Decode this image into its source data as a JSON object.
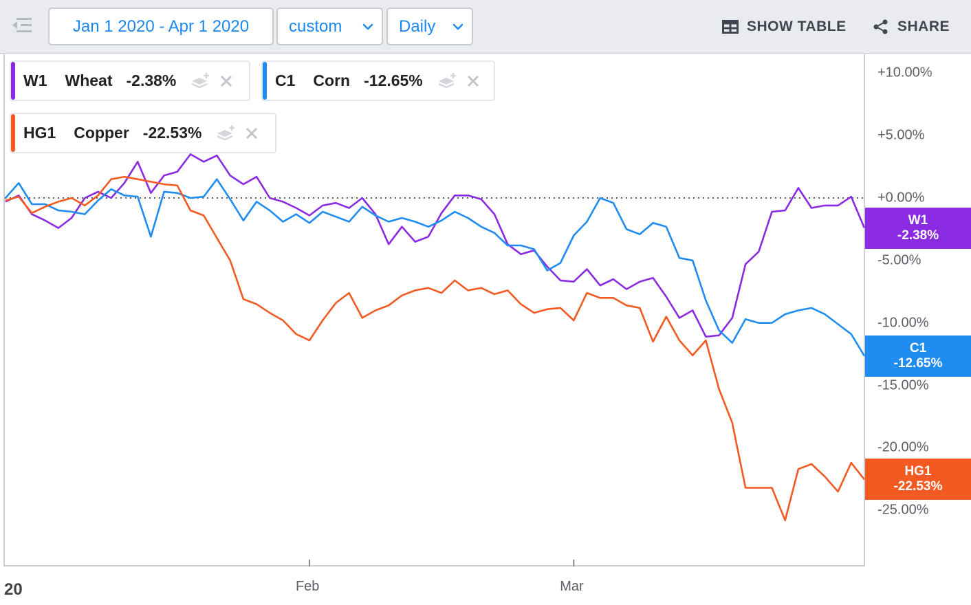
{
  "toolbar": {
    "date_range": "Jan 1 2020 - Apr 1 2020",
    "range_mode": "custom",
    "interval": "Daily",
    "show_table_label": "SHOW TABLE",
    "share_label": "SHARE"
  },
  "legend": [
    {
      "symbol": "W1",
      "name": "Wheat",
      "change": "-2.38%",
      "color": "#8a2be2"
    },
    {
      "symbol": "C1",
      "name": "Corn",
      "change": "-12.65%",
      "color": "#1e8cf0"
    },
    {
      "symbol": "HG1",
      "name": "Copper",
      "change": "-22.53%",
      "color": "#f35a22"
    }
  ],
  "badges": [
    {
      "symbol": "W1",
      "value": "-2.38%",
      "color": "#8a2be2"
    },
    {
      "symbol": "C1",
      "value": "-12.65%",
      "color": "#1e8cf0"
    },
    {
      "symbol": "HG1",
      "value": "-22.53%",
      "color": "#f35a22"
    }
  ],
  "chart_data": {
    "type": "line",
    "y_unit": "%",
    "ylim": [
      -29.5,
      11.5
    ],
    "xlim": [
      0,
      65
    ],
    "baseline": 0,
    "x_tick_labels": [
      {
        "label": "20",
        "x": 0
      },
      {
        "label": "Feb",
        "x": 23
      },
      {
        "label": "Mar",
        "x": 43
      }
    ],
    "y_tick_labels": [
      "+10.00%",
      "+5.00%",
      "+0.00%",
      "-5.00%",
      "-10.00%",
      "-15.00%",
      "-20.00%",
      "-25.00%"
    ],
    "y_tick_values": [
      10,
      5,
      0,
      -5,
      -10,
      -15,
      -20,
      -25
    ],
    "series": [
      {
        "name": "W1",
        "color": "#8a2be2",
        "x": [
          0,
          1,
          2,
          3,
          4,
          5,
          6,
          7,
          8,
          9,
          10,
          11,
          12,
          13,
          14,
          15,
          16,
          17,
          18,
          19,
          20,
          21,
          22,
          23,
          24,
          25,
          26,
          27,
          28,
          29,
          30,
          31,
          32,
          33,
          34,
          35,
          36,
          37,
          38,
          39,
          40,
          41,
          42,
          43,
          44,
          45,
          46,
          47,
          48,
          49,
          50,
          51,
          52,
          53,
          54,
          55,
          56,
          57,
          58,
          59,
          60,
          61,
          62,
          63,
          64,
          65
        ],
        "values": [
          -0.3,
          0.2,
          -1.3,
          -1.8,
          -2.4,
          -1.6,
          0.0,
          0.5,
          0.0,
          1.2,
          2.9,
          0.4,
          1.8,
          2.1,
          3.5,
          2.9,
          3.4,
          1.8,
          1.1,
          1.7,
          0.0,
          -0.3,
          -0.8,
          -1.4,
          -0.6,
          -0.4,
          -0.8,
          0.0,
          -1.3,
          -3.7,
          -2.3,
          -3.5,
          -3.1,
          -1.2,
          0.2,
          0.2,
          -0.1,
          -1.3,
          -3.7,
          -4.5,
          -4.2,
          -5.5,
          -6.6,
          -6.7,
          -5.7,
          -7.0,
          -6.5,
          -7.3,
          -6.7,
          -6.4,
          -7.9,
          -9.6,
          -9.0,
          -11.1,
          -11.0,
          -9.6,
          -5.3,
          -4.3,
          -1.1,
          -1.0,
          0.8,
          -0.8,
          -0.6,
          -0.6,
          0.1,
          -2.4
        ]
      },
      {
        "name": "C1",
        "color": "#1e8cf0",
        "x": [
          0,
          1,
          2,
          3,
          4,
          5,
          6,
          7,
          8,
          9,
          10,
          11,
          12,
          13,
          14,
          15,
          16,
          17,
          18,
          19,
          20,
          21,
          22,
          23,
          24,
          25,
          26,
          27,
          28,
          29,
          30,
          31,
          32,
          33,
          34,
          35,
          36,
          37,
          38,
          39,
          40,
          41,
          42,
          43,
          44,
          45,
          46,
          47,
          48,
          49,
          50,
          51,
          52,
          53,
          54,
          55,
          56,
          57,
          58,
          59,
          60,
          61,
          62,
          63,
          64,
          65
        ],
        "values": [
          0.0,
          1.2,
          -0.5,
          -0.5,
          -1.0,
          -1.1,
          -1.3,
          -0.2,
          0.7,
          0.2,
          0.1,
          -3.1,
          0.5,
          0.4,
          0.0,
          0.1,
          1.5,
          -0.1,
          -1.8,
          -0.3,
          -1.0,
          -1.9,
          -1.3,
          -2.0,
          -1.1,
          -1.5,
          -1.9,
          -0.7,
          -1.4,
          -1.9,
          -1.6,
          -1.9,
          -2.3,
          -1.8,
          -1.1,
          -1.6,
          -2.3,
          -2.8,
          -3.8,
          -3.8,
          -4.1,
          -5.8,
          -5.2,
          -3.0,
          -1.9,
          0.0,
          -0.4,
          -2.5,
          -2.9,
          -2.0,
          -2.3,
          -4.8,
          -5.0,
          -8.2,
          -10.6,
          -11.6,
          -9.7,
          -10.0,
          -10.0,
          -9.3,
          -9.0,
          -8.8,
          -9.3,
          -10.1,
          -10.9,
          -12.65
        ]
      },
      {
        "name": "HG1",
        "color": "#f35a22",
        "x": [
          0,
          1,
          2,
          3,
          4,
          5,
          6,
          7,
          8,
          9,
          10,
          11,
          12,
          13,
          14,
          15,
          16,
          17,
          18,
          19,
          20,
          21,
          22,
          23,
          24,
          25,
          26,
          27,
          28,
          29,
          30,
          31,
          32,
          33,
          34,
          35,
          36,
          37,
          38,
          39,
          40,
          41,
          42,
          43,
          44,
          45,
          46,
          47,
          48,
          49,
          50,
          51,
          52,
          53,
          54,
          55,
          56,
          57,
          58,
          59,
          60,
          61,
          62,
          63,
          64,
          65
        ],
        "values": [
          -0.2,
          0.1,
          -1.2,
          -0.7,
          -0.3,
          0.0,
          -0.6,
          0.2,
          1.5,
          1.7,
          1.5,
          1.3,
          1.1,
          1.0,
          -1.0,
          -1.4,
          -3.2,
          -5.0,
          -8.1,
          -8.5,
          -9.2,
          -9.8,
          -10.9,
          -11.4,
          -9.8,
          -8.4,
          -7.6,
          -9.6,
          -9.0,
          -8.6,
          -7.8,
          -7.4,
          -7.2,
          -7.6,
          -6.6,
          -7.4,
          -7.2,
          -7.7,
          -7.4,
          -8.5,
          -9.2,
          -8.9,
          -8.8,
          -9.8,
          -7.6,
          -8.0,
          -8.0,
          -8.6,
          -8.8,
          -11.5,
          -9.5,
          -11.4,
          -12.6,
          -11.4,
          -15.3,
          -18.0,
          -23.2,
          -23.2,
          -23.2,
          -25.8,
          -21.7,
          -21.3,
          -22.3,
          -23.5,
          -21.2,
          -22.53
        ]
      }
    ]
  }
}
